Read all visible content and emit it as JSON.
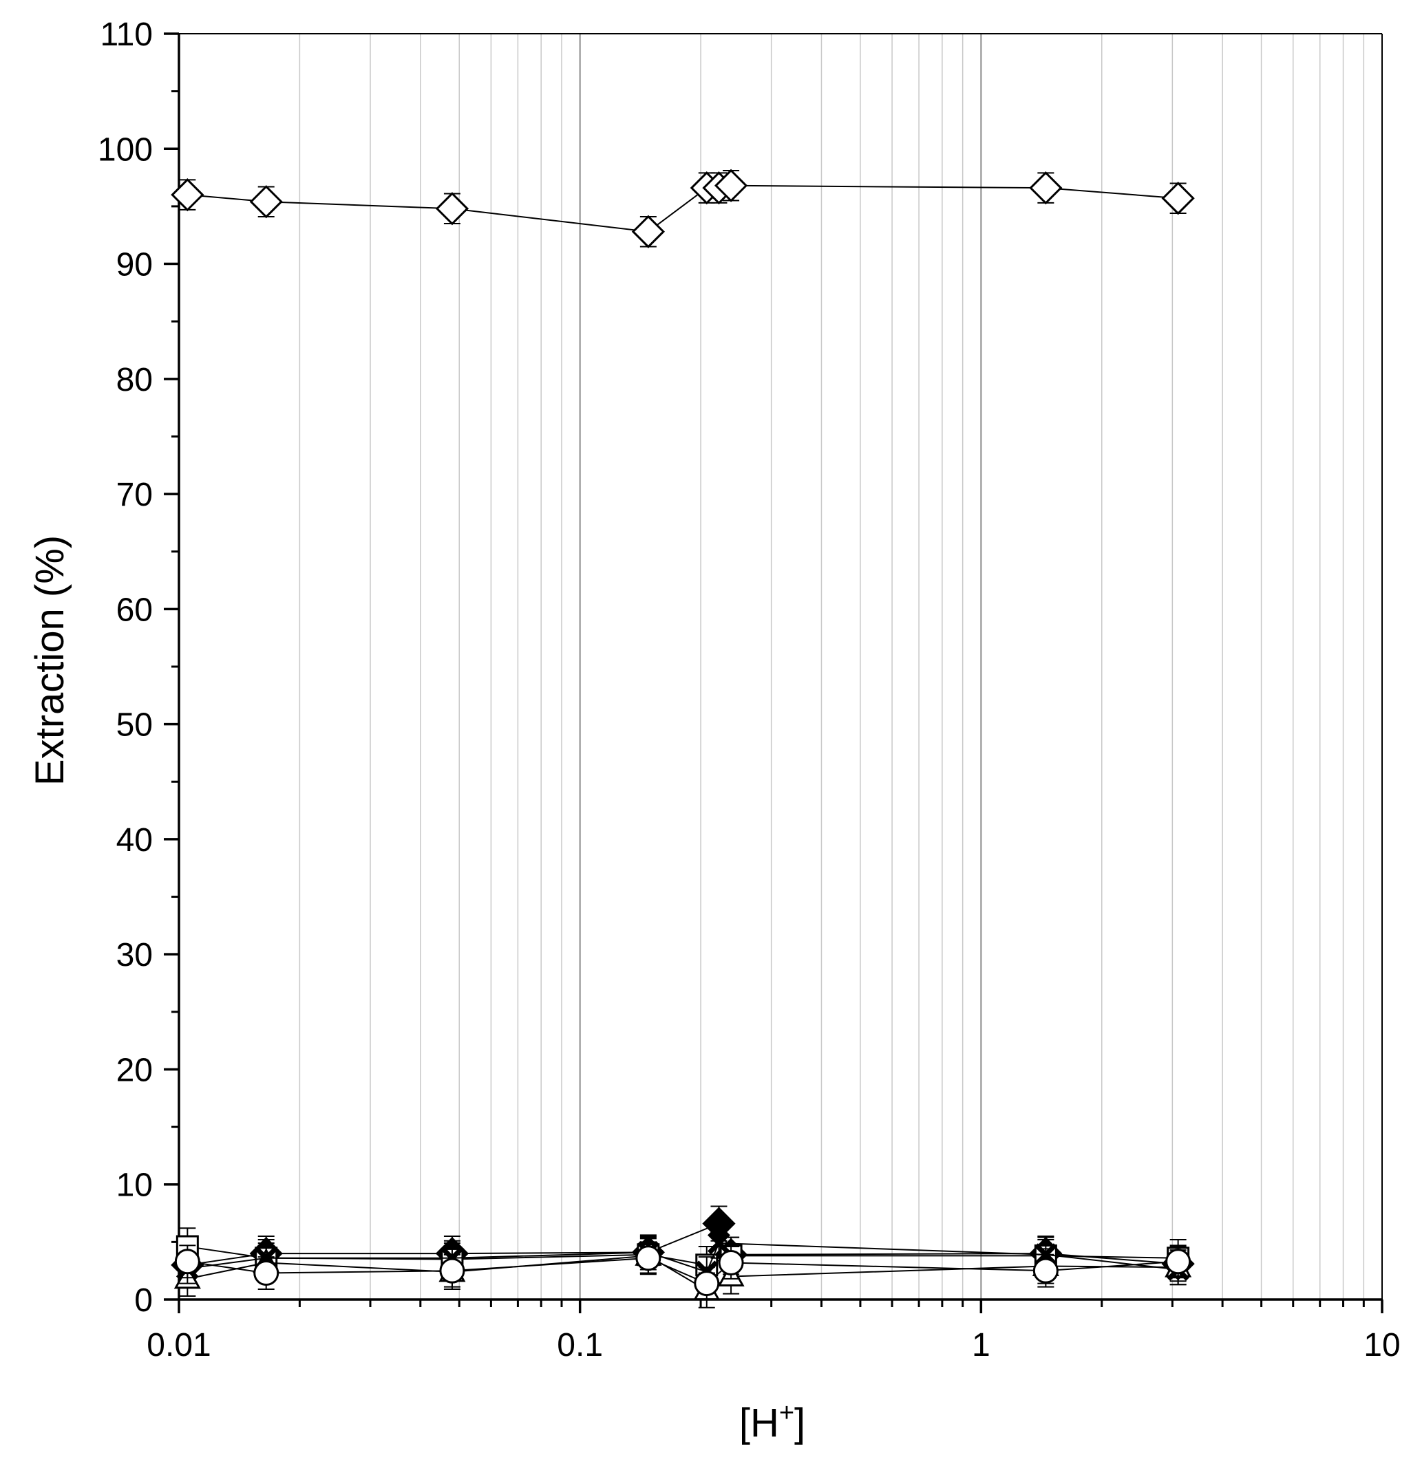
{
  "chart_data": {
    "type": "scatter",
    "xscale": "log",
    "xlim": [
      0.01,
      10
    ],
    "ylim": [
      0,
      110
    ],
    "grid": "vertical minor and major",
    "ylabel": "Extraction (%)",
    "xlabel": {
      "main": "[H",
      "sup": "+",
      "close": "]"
    },
    "xticks": [
      {
        "value": 0.01,
        "label": "0.01"
      },
      {
        "value": 0.1,
        "label": "0.1"
      },
      {
        "value": 1,
        "label": "1"
      },
      {
        "value": 10,
        "label": "10"
      }
    ],
    "yticks": [
      {
        "value": 0,
        "label": "0"
      },
      {
        "value": 10,
        "label": "10"
      },
      {
        "value": 20,
        "label": "20"
      },
      {
        "value": 30,
        "label": "30"
      },
      {
        "value": 40,
        "label": "40"
      },
      {
        "value": 50,
        "label": "50"
      },
      {
        "value": 60,
        "label": "60"
      },
      {
        "value": 70,
        "label": "70"
      },
      {
        "value": 80,
        "label": "80"
      },
      {
        "value": 90,
        "label": "90"
      },
      {
        "value": 100,
        "label": "100"
      },
      {
        "value": 110,
        "label": "110"
      }
    ],
    "series": [
      {
        "marker": "open-diamond",
        "x": [
          0.0105,
          0.0165,
          0.048,
          0.148,
          0.207,
          0.222,
          0.238,
          1.45,
          3.1
        ],
        "y": [
          96.0,
          95.4,
          94.8,
          92.8,
          96.6,
          96.6,
          96.8,
          96.6,
          95.7
        ],
        "err": [
          1.3,
          1.3,
          1.3,
          1.3,
          1.3,
          1.3,
          1.3,
          1.3,
          1.3
        ]
      },
      {
        "marker": "filled-diamond",
        "x": [
          0.0105,
          0.0165,
          0.048,
          0.148,
          0.222,
          0.238,
          1.45,
          3.1
        ],
        "y": [
          3.0,
          4.0,
          4.0,
          4.1,
          6.6,
          3.9,
          4.0,
          3.1
        ],
        "err": [
          1.5,
          1.5,
          1.5,
          1.5,
          1.5,
          1.5,
          1.5,
          1.5
        ]
      },
      {
        "marker": "open-square",
        "x": [
          0.0105,
          0.0165,
          0.048,
          0.148,
          0.207,
          0.238,
          1.45,
          3.1
        ],
        "y": [
          4.6,
          3.6,
          3.5,
          3.9,
          3.0,
          3.8,
          3.8,
          3.6
        ],
        "err": [
          1.6,
          1.6,
          1.6,
          1.6,
          1.6,
          1.6,
          1.6,
          1.6
        ]
      },
      {
        "marker": "open-triangle",
        "x": [
          0.0105,
          0.0165,
          0.048,
          0.148,
          0.207,
          0.238,
          1.45,
          3.1
        ],
        "y": [
          1.8,
          3.2,
          2.4,
          3.8,
          0.8,
          2.0,
          2.9,
          2.8
        ],
        "err": [
          1.5,
          1.5,
          1.5,
          1.5,
          1.5,
          1.5,
          1.5,
          1.5
        ]
      },
      {
        "marker": "cross",
        "x": [
          0.0105,
          0.0165,
          0.048,
          0.148,
          0.207,
          0.222,
          1.45,
          3.1
        ],
        "y": [
          2.7,
          3.6,
          3.6,
          4.1,
          2.4,
          4.9,
          3.9,
          2.6
        ],
        "err": [
          1.3,
          1.3,
          1.3,
          1.3,
          1.3,
          1.3,
          1.3,
          1.3
        ]
      },
      {
        "marker": "open-circle",
        "x": [
          0.0105,
          0.0165,
          0.048,
          0.148,
          0.207,
          0.238,
          1.45,
          3.1
        ],
        "y": [
          3.3,
          2.3,
          2.5,
          3.6,
          1.4,
          3.2,
          2.5,
          3.3
        ],
        "err": [
          1.4,
          1.4,
          1.4,
          1.4,
          1.4,
          1.4,
          1.4,
          1.4
        ]
      }
    ]
  }
}
